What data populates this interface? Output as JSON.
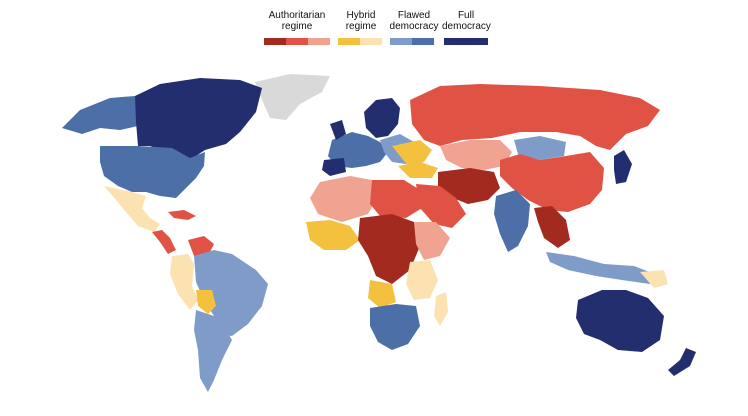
{
  "legend": {
    "items": [
      {
        "label": "Authoritarian\nregime",
        "colors": [
          "#a32a1f",
          "#e05344",
          "#f0a391"
        ]
      },
      {
        "label": "Hybrid\nregime",
        "colors": [
          "#f4c13f",
          "#fbe2b0"
        ]
      },
      {
        "label": "Flawed\ndemocracy",
        "colors": [
          "#7f9bc8",
          "#4c6fa8"
        ]
      },
      {
        "label": "Full\ndemocracy",
        "colors": [
          "#232e6f"
        ]
      }
    ]
  },
  "colors": {
    "no_data": "#d9d9d9",
    "authoritarian_dark": "#a32a1f",
    "authoritarian_mid": "#e05344",
    "authoritarian_light": "#f0a391",
    "hybrid_dark": "#f4c13f",
    "hybrid_light": "#fbe2b0",
    "flawed_light": "#7f9bc8",
    "flawed_dark": "#4c6fa8",
    "full": "#232e6f"
  }
}
